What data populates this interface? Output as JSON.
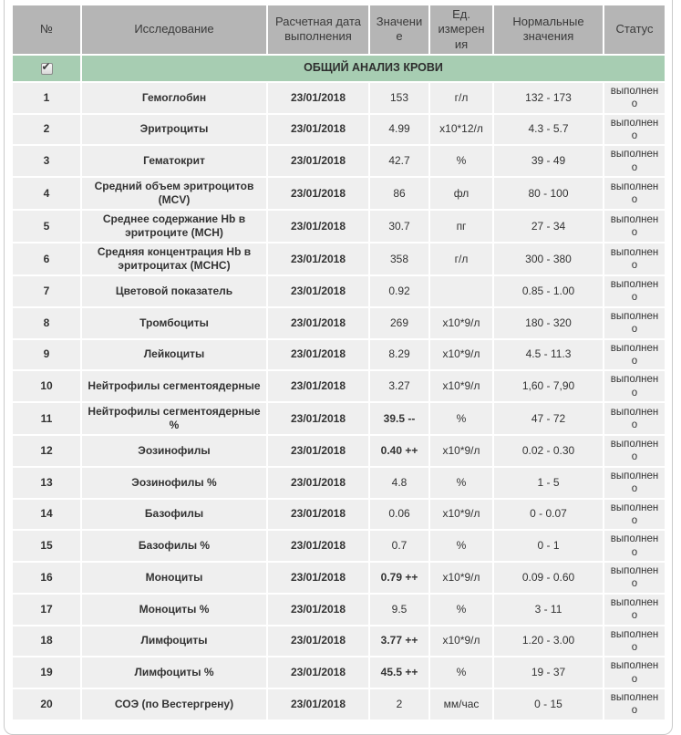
{
  "colors": {
    "header_bg": "#b5b5b5",
    "header_text": "#3a3a3a",
    "group_bg": "#a7cdb2",
    "row_bg": "#efefef",
    "cell_text": "#333333",
    "panel_border": "#c9c9c9",
    "page_bg": "#ffffff"
  },
  "table": {
    "columns": [
      "№",
      "Исследование",
      "Расчетная дата выполнения",
      "Значение",
      "Ед. измерения",
      "Нормальные значения",
      "Статус"
    ],
    "group_header": "ОБЩИЙ АНАЛИЗ КРОВИ",
    "group_checkbox_checked": "✔",
    "rows": [
      {
        "num": "1",
        "name": "Гемоглобин",
        "date": "23/01/2018",
        "value": "153",
        "value_bold": false,
        "unit": "г/л",
        "normal": "132 - 173",
        "status": "выполнено"
      },
      {
        "num": "2",
        "name": "Эритроциты",
        "date": "23/01/2018",
        "value": "4.99",
        "value_bold": false,
        "unit": "х10*12/л",
        "normal": "4.3 - 5.7",
        "status": "выполнено"
      },
      {
        "num": "3",
        "name": "Гематокрит",
        "date": "23/01/2018",
        "value": "42.7",
        "value_bold": false,
        "unit": "%",
        "normal": "39 - 49",
        "status": "выполнено"
      },
      {
        "num": "4",
        "name": "Средний объем эритроцитов (MCV)",
        "date": "23/01/2018",
        "value": "86",
        "value_bold": false,
        "unit": "фл",
        "normal": "80 - 100",
        "status": "выполнено"
      },
      {
        "num": "5",
        "name": "Среднее содержание Hb в эритроците (MCH)",
        "date": "23/01/2018",
        "value": "30.7",
        "value_bold": false,
        "unit": "пг",
        "normal": "27 - 34",
        "status": "выполнено"
      },
      {
        "num": "6",
        "name": "Средняя концентрация Hb в эритроцитах (MCHC)",
        "date": "23/01/2018",
        "value": "358",
        "value_bold": false,
        "unit": "г/л",
        "normal": "300 - 380",
        "status": "выполнено"
      },
      {
        "num": "7",
        "name": "Цветовой показатель",
        "date": "23/01/2018",
        "value": "0.92",
        "value_bold": false,
        "unit": "",
        "normal": "0.85 - 1.00",
        "status": "выполнено"
      },
      {
        "num": "8",
        "name": "Тромбоциты",
        "date": "23/01/2018",
        "value": "269",
        "value_bold": false,
        "unit": "х10*9/л",
        "normal": "180 - 320",
        "status": "выполнено"
      },
      {
        "num": "9",
        "name": "Лейкоциты",
        "date": "23/01/2018",
        "value": "8.29",
        "value_bold": false,
        "unit": "х10*9/л",
        "normal": "4.5 - 11.3",
        "status": "выполнено"
      },
      {
        "num": "10",
        "name": "Нейтрофилы сегментоядерные",
        "date": "23/01/2018",
        "value": "3.27",
        "value_bold": false,
        "unit": "х10*9/л",
        "normal": "1,60 - 7,90",
        "status": "выполнено"
      },
      {
        "num": "11",
        "name": "Нейтрофилы сегментоядерные %",
        "date": "23/01/2018",
        "value": "39.5 --",
        "value_bold": true,
        "unit": "%",
        "normal": "47 - 72",
        "status": "выполнено"
      },
      {
        "num": "12",
        "name": "Эозинофилы",
        "date": "23/01/2018",
        "value": "0.40 ++",
        "value_bold": true,
        "unit": "х10*9/л",
        "normal": "0.02 - 0.30",
        "status": "выполнено"
      },
      {
        "num": "13",
        "name": "Эозинофилы %",
        "date": "23/01/2018",
        "value": "4.8",
        "value_bold": false,
        "unit": "%",
        "normal": "1 - 5",
        "status": "выполнено"
      },
      {
        "num": "14",
        "name": "Базофилы",
        "date": "23/01/2018",
        "value": "0.06",
        "value_bold": false,
        "unit": "х10*9/л",
        "normal": "0 - 0.07",
        "status": "выполнено"
      },
      {
        "num": "15",
        "name": "Базофилы %",
        "date": "23/01/2018",
        "value": "0.7",
        "value_bold": false,
        "unit": "%",
        "normal": "0 - 1",
        "status": "выполнено"
      },
      {
        "num": "16",
        "name": "Моноциты",
        "date": "23/01/2018",
        "value": "0.79 ++",
        "value_bold": true,
        "unit": "х10*9/л",
        "normal": "0.09 - 0.60",
        "status": "выполнено"
      },
      {
        "num": "17",
        "name": "Моноциты %",
        "date": "23/01/2018",
        "value": "9.5",
        "value_bold": false,
        "unit": "%",
        "normal": "3 - 11",
        "status": "выполнено"
      },
      {
        "num": "18",
        "name": "Лимфоциты",
        "date": "23/01/2018",
        "value": "3.77 ++",
        "value_bold": true,
        "unit": "х10*9/л",
        "normal": "1.20 - 3.00",
        "status": "выполнено"
      },
      {
        "num": "19",
        "name": "Лимфоциты %",
        "date": "23/01/2018",
        "value": "45.5 ++",
        "value_bold": true,
        "unit": "%",
        "normal": "19 - 37",
        "status": "выполнено"
      },
      {
        "num": "20",
        "name": "СОЭ (по Вестергрену)",
        "date": "23/01/2018",
        "value": "2",
        "value_bold": false,
        "unit": "мм/час",
        "normal": "0 - 15",
        "status": "выполнено"
      }
    ]
  }
}
